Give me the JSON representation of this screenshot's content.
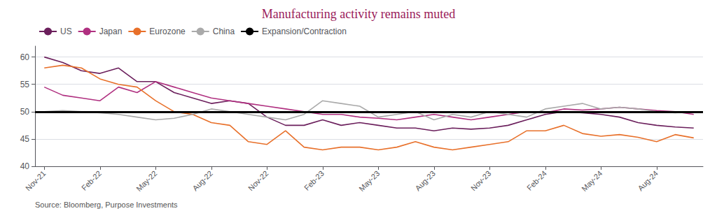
{
  "chart_data": {
    "type": "line",
    "title": "Manufacturing activity remains muted",
    "title_color": "#9B1B5A",
    "source": "Source: Bloomberg, Purpose Investments",
    "categories": [
      "Nov-21",
      null,
      null,
      "Feb-22",
      null,
      null,
      "May-22",
      null,
      null,
      "Aug-22",
      null,
      null,
      "Nov-22",
      null,
      null,
      "Feb-23",
      null,
      null,
      "May-23",
      null,
      null,
      "Aug-23",
      null,
      null,
      "Nov-23",
      null,
      null,
      "Feb-24",
      null,
      null,
      "May-24",
      null,
      null,
      "Aug-24",
      null,
      null
    ],
    "series": [
      {
        "name": "US",
        "color": "#6B1F5C",
        "values": [
          60.0,
          59.0,
          57.5,
          57.0,
          58.0,
          55.5,
          55.5,
          53.5,
          52.5,
          51.5,
          52.0,
          51.5,
          49.0,
          47.5,
          47.5,
          48.5,
          47.5,
          48.0,
          47.5,
          47.0,
          47.0,
          46.5,
          47.0,
          46.8,
          47.0,
          47.5,
          48.5,
          49.5,
          50.0,
          49.8,
          49.5,
          49.0,
          48.0,
          47.5,
          47.2,
          47.0
        ]
      },
      {
        "name": "Japan",
        "color": "#B03080",
        "values": [
          54.5,
          53.0,
          52.5,
          52.0,
          54.5,
          53.5,
          55.5,
          54.5,
          53.5,
          52.5,
          52.0,
          51.5,
          51.0,
          50.5,
          50.0,
          49.5,
          49.5,
          49.0,
          48.8,
          48.5,
          49.0,
          49.5,
          49.0,
          48.5,
          49.0,
          49.5,
          50.0,
          49.8,
          50.5,
          50.3,
          50.5,
          50.8,
          50.5,
          50.2,
          50.0,
          49.5
        ]
      },
      {
        "name": "Eurozone",
        "color": "#E8702A",
        "values": [
          58.0,
          58.5,
          58.0,
          56.0,
          55.0,
          54.5,
          52.0,
          50.0,
          49.5,
          48.0,
          47.5,
          44.5,
          44.0,
          46.5,
          43.5,
          43.0,
          43.5,
          43.5,
          43.0,
          43.5,
          44.5,
          43.5,
          43.0,
          43.5,
          44.0,
          44.5,
          46.5,
          46.5,
          47.5,
          46.0,
          45.5,
          45.8,
          45.3,
          44.5,
          45.8,
          45.2
        ]
      },
      {
        "name": "China",
        "color": "#AAAAAA",
        "values": [
          50.0,
          50.2,
          50.0,
          49.8,
          49.5,
          49.0,
          48.5,
          48.8,
          49.5,
          50.5,
          50.0,
          49.5,
          49.0,
          48.5,
          49.5,
          52.0,
          51.5,
          51.0,
          49.0,
          49.5,
          50.0,
          48.5,
          49.5,
          49.0,
          50.0,
          49.5,
          49.0,
          50.5,
          51.0,
          51.5,
          50.5,
          50.8,
          50.5,
          50.0,
          49.8,
          50.0
        ]
      }
    ],
    "reference_line": {
      "name": "Expansion/Contraction",
      "value": 50,
      "color": "#000000"
    },
    "ylim": [
      40,
      62
    ],
    "yticks": [
      40,
      45,
      50,
      55,
      60
    ],
    "grid": true,
    "legend": "top"
  }
}
